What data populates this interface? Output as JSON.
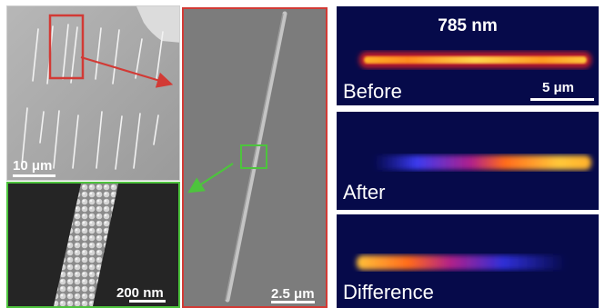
{
  "figure": {
    "panel_a": {
      "scale_label": "10 μm"
    },
    "panel_b": {
      "scale_label": "2.5 μm"
    },
    "panel_c": {
      "scale_label": "200 nm"
    },
    "fluorescence": {
      "wavelength": "785 nm",
      "scale_label": "5 μm",
      "before_label": "Before",
      "after_label": "After",
      "difference_label": "Difference"
    },
    "colors": {
      "red_box": "#d23a35",
      "green_box": "#4dc43d",
      "background_blue": "#060a4a",
      "hot_emission": "#ffd23a"
    }
  }
}
